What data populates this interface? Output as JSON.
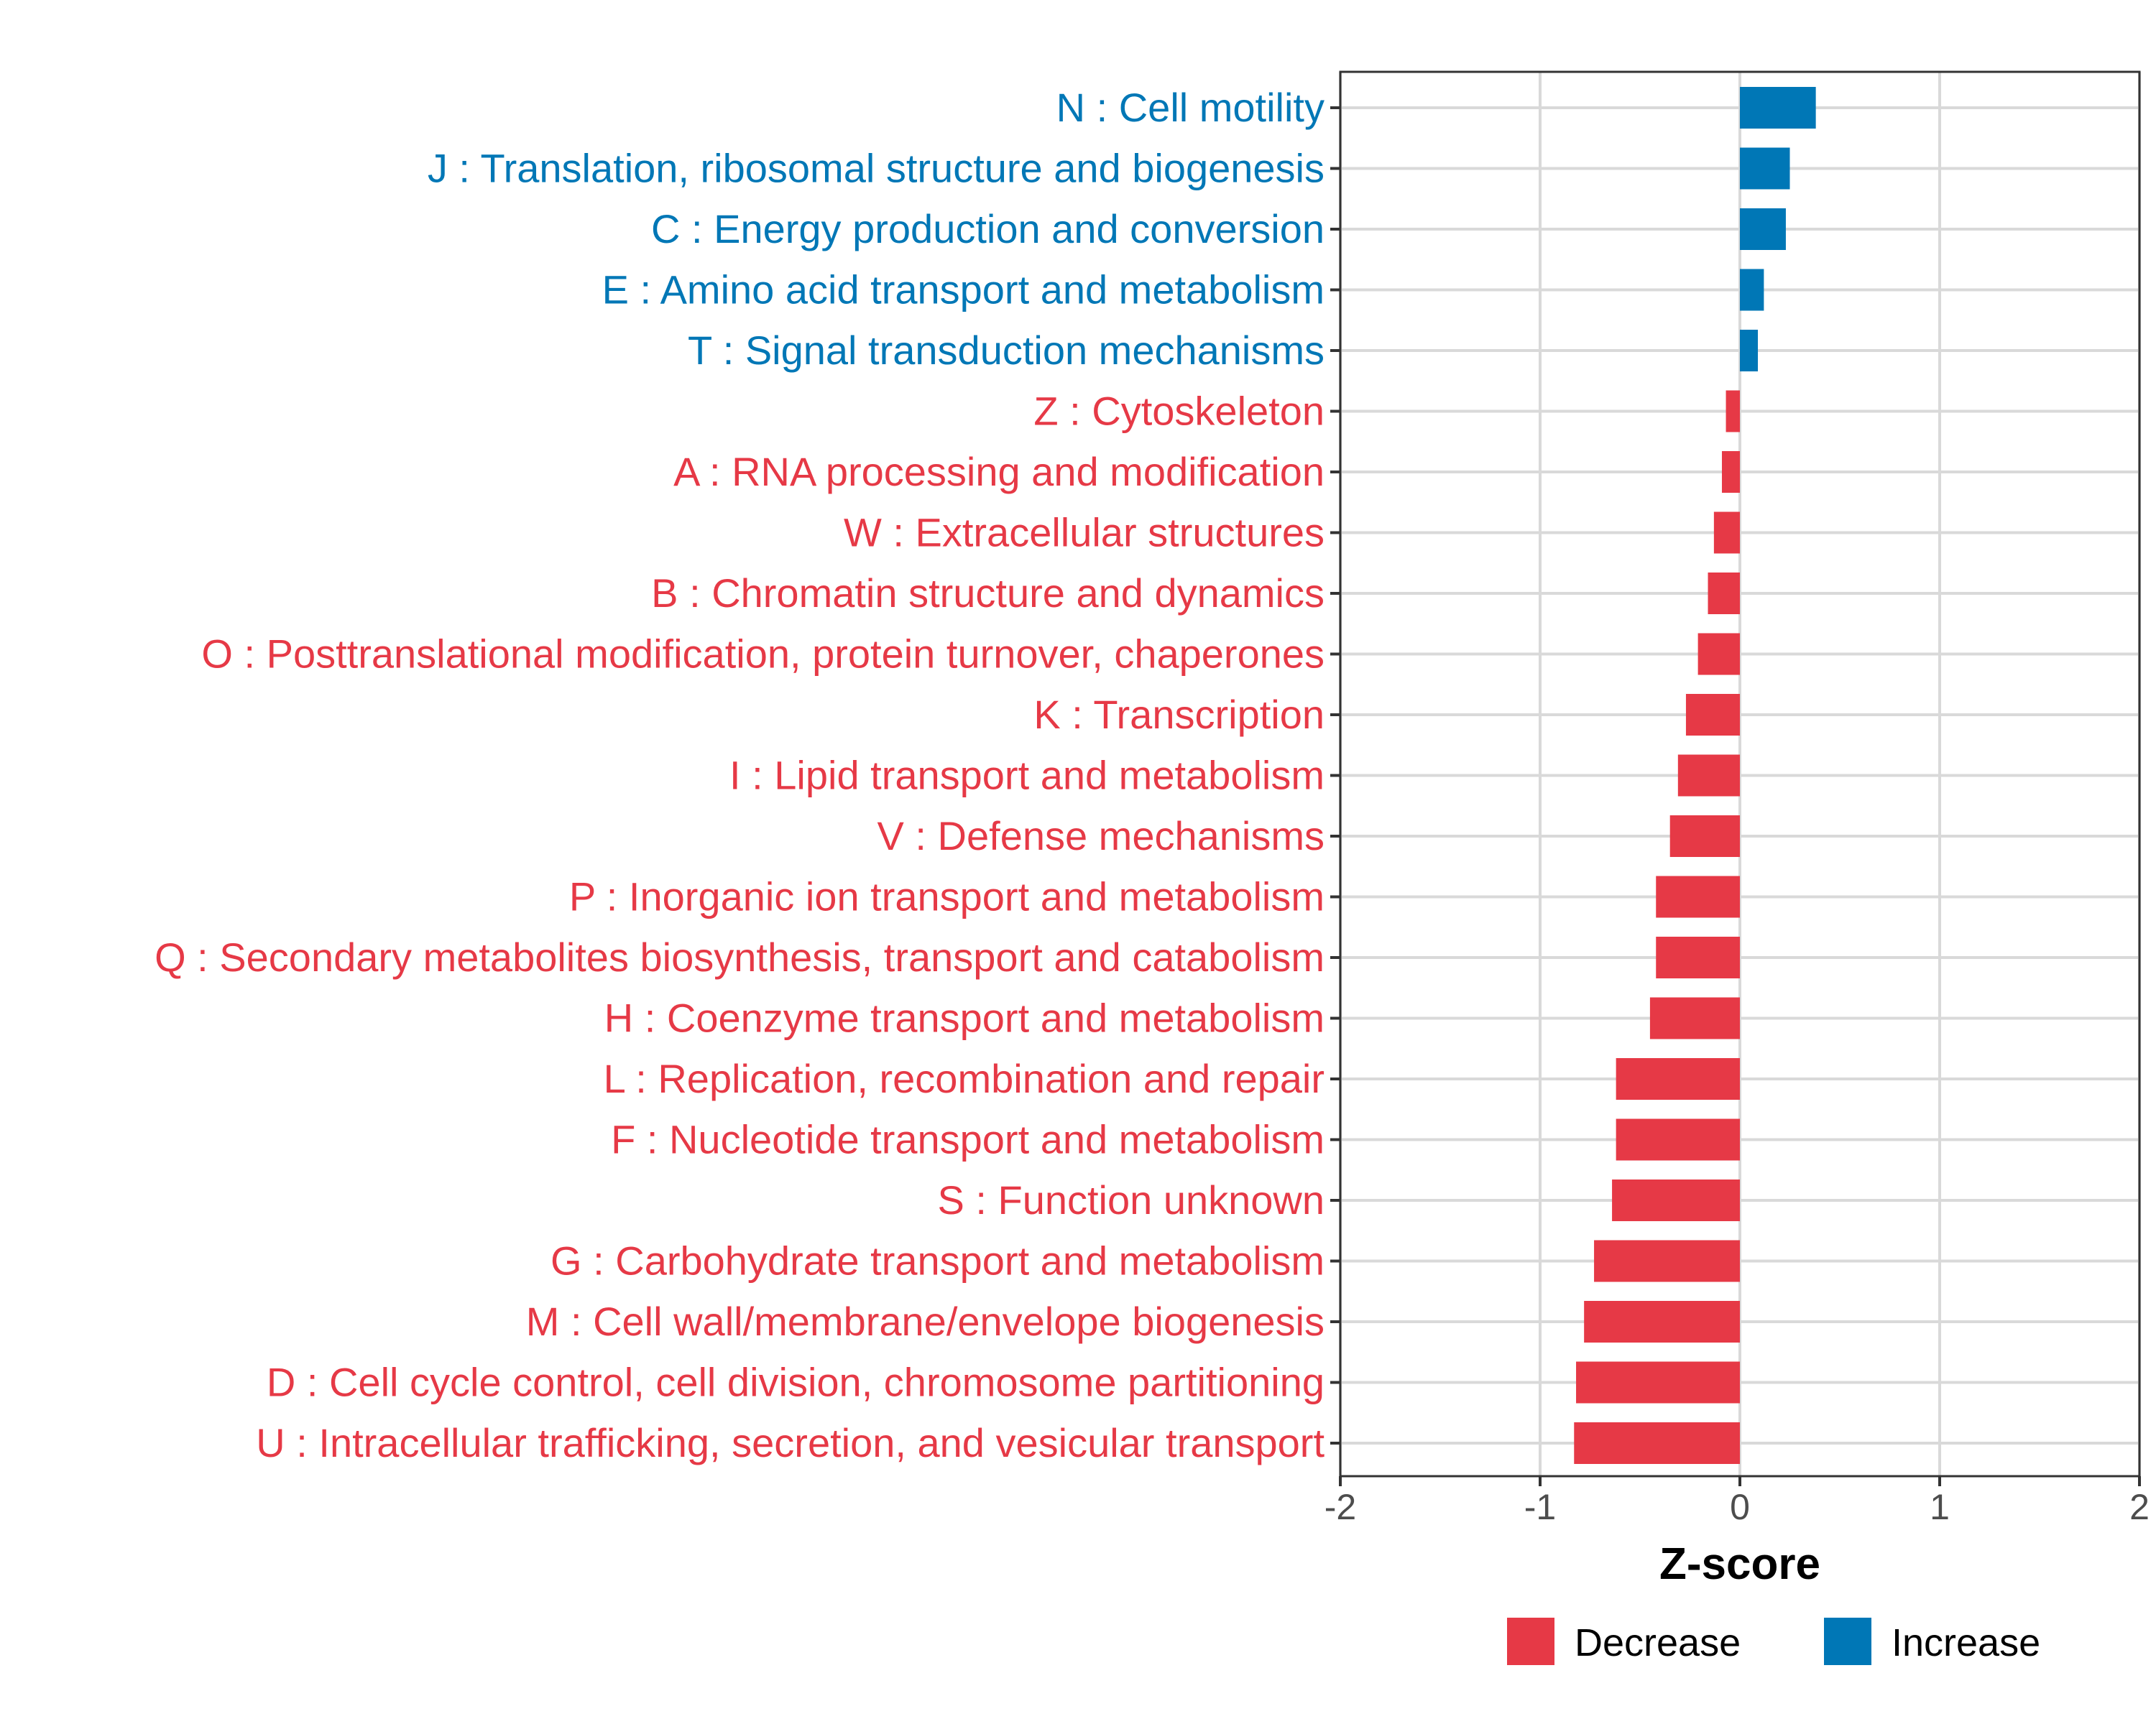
{
  "chart_data": {
    "type": "bar",
    "orientation": "horizontal",
    "title": "",
    "xlabel": "Z-score",
    "ylabel": "",
    "xlim": [
      -2,
      2
    ],
    "xticks": [
      -2,
      -1,
      0,
      1,
      2
    ],
    "xtick_labels": [
      "-2",
      "-1",
      "0",
      "1",
      "2"
    ],
    "grid": true,
    "legend_position": "bottom",
    "colors": {
      "Decrease": "#E63946",
      "Increase": "#0077B6"
    },
    "legend": [
      {
        "label": "Decrease",
        "color": "#E63946"
      },
      {
        "label": "Increase",
        "color": "#0077B6"
      }
    ],
    "categories": [
      "N : Cell motility",
      "J : Translation, ribosomal structure and biogenesis",
      "C : Energy production and conversion",
      "E : Amino acid transport and metabolism",
      "T : Signal transduction mechanisms",
      "Z : Cytoskeleton",
      "A : RNA processing and modification",
      "W : Extracellular structures",
      "B : Chromatin structure and dynamics",
      "O : Posttranslational modification, protein turnover, chaperones",
      "K : Transcription",
      "I : Lipid transport and metabolism",
      "V : Defense mechanisms",
      "P : Inorganic ion transport and metabolism",
      "Q : Secondary metabolites biosynthesis, transport and catabolism",
      "H : Coenzyme transport and metabolism",
      "L : Replication, recombination and repair",
      "F : Nucleotide transport and metabolism",
      "S : Function unknown",
      "G : Carbohydrate transport and metabolism",
      "M : Cell wall/membrane/envelope biogenesis",
      "D : Cell cycle control, cell division, chromosome partitioning",
      "U : Intracellular trafficking, secretion, and vesicular transport"
    ],
    "values": [
      0.38,
      0.25,
      0.23,
      0.12,
      0.09,
      -0.07,
      -0.09,
      -0.13,
      -0.16,
      -0.21,
      -0.27,
      -0.31,
      -0.35,
      -0.42,
      -0.42,
      -0.45,
      -0.62,
      -0.62,
      -0.64,
      -0.73,
      -0.78,
      -0.82,
      -0.83
    ],
    "groups": [
      "Increase",
      "Increase",
      "Increase",
      "Increase",
      "Increase",
      "Decrease",
      "Decrease",
      "Decrease",
      "Decrease",
      "Decrease",
      "Decrease",
      "Decrease",
      "Decrease",
      "Decrease",
      "Decrease",
      "Decrease",
      "Decrease",
      "Decrease",
      "Decrease",
      "Decrease",
      "Decrease",
      "Decrease",
      "Decrease"
    ]
  }
}
